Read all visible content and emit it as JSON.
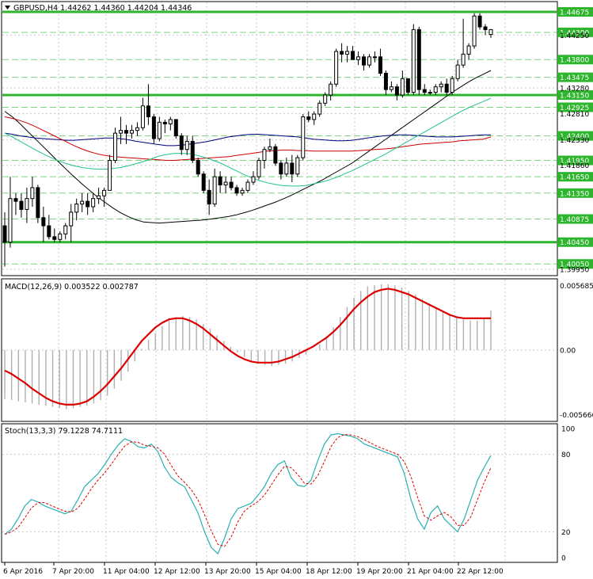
{
  "main_panel": {
    "header": "GBPUSD,H4  1.44262 1.44360 1.44204 1.44346",
    "level_labels": [
      "1.44675",
      "1.44300",
      "1.43800",
      "1.43475",
      "1.43150",
      "1.42925",
      "1.42400",
      "1.41950",
      "1.41650",
      "1.41350",
      "1.40875",
      "1.40450",
      "1.40050"
    ],
    "price_labels": [
      "1.44250",
      "1.43280",
      "1.42810",
      "1.42330",
      "1.41860",
      "1.39950"
    ]
  },
  "macd_panel": {
    "header": "MACD(12,26,9) 0.003522 0.002787",
    "axis_labels": [
      "0.005685",
      "0.00",
      "-0.005666"
    ]
  },
  "stoch_panel": {
    "header": "Stoch(13,3,3) 79.1228 74.7111",
    "axis_labels": [
      "100",
      "80",
      "20",
      "0"
    ]
  },
  "x_labels": [
    "6 Apr 2016",
    "7 Apr 20:00",
    "11 Apr 04:00",
    "12 Apr 12:00",
    "13 Apr 20:00",
    "15 Apr 04:00",
    "18 Apr 12:00",
    "19 Apr 20:00",
    "21 Apr 04:00",
    "22 Apr 12:00"
  ],
  "colors": {
    "level_thick": "#2db52d",
    "level_dashed": "#7ed37e",
    "candle": "#000000",
    "ma_black": "#000000",
    "ma_navy": "#000080",
    "ma_red": "#cc0000",
    "ma_green": "#22c28a",
    "macd_signal": "#dd0000",
    "macd_hist": "#b0b0b0",
    "stoch_main": "#2ab0b0",
    "stoch_signal": "#dd0000",
    "grid": "#c8c8c8"
  },
  "chart_data": [
    {
      "type": "candlestick",
      "symbol": "GBPUSD",
      "timeframe": "H4",
      "ohlc_last": {
        "open": 1.44262,
        "high": 1.4436,
        "low": 1.44204,
        "close": 1.44346
      },
      "ylim": [
        1.3985,
        1.4485
      ],
      "horizontal_levels": [
        {
          "value": 1.44675,
          "style": "thick"
        },
        {
          "value": 1.443,
          "style": "dashed"
        },
        {
          "value": 1.438,
          "style": "dashed"
        },
        {
          "value": 1.43475,
          "style": "dashed"
        },
        {
          "value": 1.4315,
          "style": "thick"
        },
        {
          "value": 1.42925,
          "style": "dashed"
        },
        {
          "value": 1.424,
          "style": "dashed"
        },
        {
          "value": 1.4195,
          "style": "dashed"
        },
        {
          "value": 1.4165,
          "style": "dashed"
        },
        {
          "value": 1.4135,
          "style": "dashed"
        },
        {
          "value": 1.40875,
          "style": "dashed"
        },
        {
          "value": 1.4045,
          "style": "thick"
        },
        {
          "value": 1.4005,
          "style": "dashed"
        }
      ],
      "candles": [
        [
          1.4075,
          1.41,
          1.4,
          1.4045
        ],
        [
          1.4045,
          1.4165,
          1.4035,
          1.4125
        ],
        [
          1.4125,
          1.4135,
          1.4095,
          1.412
        ],
        [
          1.412,
          1.4135,
          1.409,
          1.4105
        ],
        [
          1.4105,
          1.4145,
          1.408,
          1.4125
        ],
        [
          1.4125,
          1.4165,
          1.411,
          1.4145
        ],
        [
          1.4145,
          1.415,
          1.408,
          1.409
        ],
        [
          1.409,
          1.411,
          1.4045,
          1.4075
        ],
        [
          1.4075,
          1.4095,
          1.405,
          1.4055
        ],
        [
          1.4055,
          1.407,
          1.4045,
          1.405
        ],
        [
          1.405,
          1.4065,
          1.4045,
          1.406
        ],
        [
          1.406,
          1.408,
          1.405,
          1.4075
        ],
        [
          1.4075,
          1.4115,
          1.4045,
          1.41
        ],
        [
          1.41,
          1.4125,
          1.4085,
          1.4115
        ],
        [
          1.4115,
          1.4135,
          1.41,
          1.412
        ],
        [
          1.412,
          1.4135,
          1.4095,
          1.411
        ],
        [
          1.411,
          1.4135,
          1.41,
          1.4125
        ],
        [
          1.4125,
          1.4145,
          1.4115,
          1.413
        ],
        [
          1.413,
          1.4145,
          1.411,
          1.414
        ],
        [
          1.414,
          1.4205,
          1.414,
          1.4195
        ],
        [
          1.4195,
          1.4255,
          1.419,
          1.4245
        ],
        [
          1.4245,
          1.4275,
          1.4225,
          1.425
        ],
        [
          1.425,
          1.426,
          1.4225,
          1.4245
        ],
        [
          1.4245,
          1.426,
          1.4235,
          1.425
        ],
        [
          1.425,
          1.4265,
          1.424,
          1.4255
        ],
        [
          1.4255,
          1.431,
          1.425,
          1.4295
        ],
        [
          1.4295,
          1.4335,
          1.426,
          1.4275
        ],
        [
          1.4275,
          1.428,
          1.4225,
          1.4235
        ],
        [
          1.4235,
          1.4275,
          1.423,
          1.4265
        ],
        [
          1.4265,
          1.427,
          1.4245,
          1.4262
        ],
        [
          1.4262,
          1.4275,
          1.425,
          1.427
        ],
        [
          1.427,
          1.427,
          1.4235,
          1.424
        ],
        [
          1.424,
          1.4245,
          1.4205,
          1.4215
        ],
        [
          1.4215,
          1.424,
          1.4205,
          1.423
        ],
        [
          1.423,
          1.424,
          1.419,
          1.4195
        ],
        [
          1.4195,
          1.42,
          1.4165,
          1.417
        ],
        [
          1.417,
          1.4175,
          1.4135,
          1.414
        ],
        [
          1.414,
          1.416,
          1.4095,
          1.4115
        ],
        [
          1.4115,
          1.418,
          1.411,
          1.4165
        ],
        [
          1.4165,
          1.4175,
          1.4135,
          1.415
        ],
        [
          1.415,
          1.4165,
          1.4135,
          1.4155
        ],
        [
          1.4155,
          1.4165,
          1.414,
          1.4145
        ],
        [
          1.4145,
          1.415,
          1.413,
          1.4135
        ],
        [
          1.4135,
          1.4145,
          1.413,
          1.414
        ],
        [
          1.414,
          1.416,
          1.4135,
          1.4155
        ],
        [
          1.4155,
          1.4175,
          1.415,
          1.4165
        ],
        [
          1.4165,
          1.42,
          1.416,
          1.4195
        ],
        [
          1.4195,
          1.422,
          1.418,
          1.4215
        ],
        [
          1.4215,
          1.4235,
          1.421,
          1.422
        ],
        [
          1.422,
          1.4225,
          1.4185,
          1.419
        ],
        [
          1.419,
          1.4195,
          1.416,
          1.417
        ],
        [
          1.417,
          1.42,
          1.4165,
          1.419
        ],
        [
          1.419,
          1.4205,
          1.4155,
          1.417
        ],
        [
          1.417,
          1.4205,
          1.4165,
          1.42
        ],
        [
          1.42,
          1.428,
          1.4195,
          1.4275
        ],
        [
          1.4275,
          1.4285,
          1.4265,
          1.427
        ],
        [
          1.427,
          1.4285,
          1.426,
          1.428
        ],
        [
          1.428,
          1.4305,
          1.4275,
          1.43
        ],
        [
          1.43,
          1.432,
          1.4295,
          1.4315
        ],
        [
          1.4315,
          1.434,
          1.4305,
          1.4335
        ],
        [
          1.4335,
          1.44,
          1.433,
          1.4395
        ],
        [
          1.4395,
          1.441,
          1.4375,
          1.439
        ],
        [
          1.439,
          1.4405,
          1.4375,
          1.4395
        ],
        [
          1.4395,
          1.4405,
          1.438,
          1.438
        ],
        [
          1.438,
          1.4395,
          1.437,
          1.4385
        ],
        [
          1.4385,
          1.439,
          1.436,
          1.437
        ],
        [
          1.437,
          1.439,
          1.4365,
          1.4385
        ],
        [
          1.4385,
          1.4395,
          1.4375,
          1.4385
        ],
        [
          1.4385,
          1.44,
          1.435,
          1.4355
        ],
        [
          1.4355,
          1.436,
          1.4315,
          1.4325
        ],
        [
          1.4325,
          1.434,
          1.432,
          1.433
        ],
        [
          1.433,
          1.4335,
          1.4305,
          1.4315
        ],
        [
          1.4315,
          1.436,
          1.431,
          1.4345
        ],
        [
          1.4345,
          1.4345,
          1.4315,
          1.432
        ],
        [
          1.432,
          1.4445,
          1.4315,
          1.4435
        ],
        [
          1.4435,
          1.444,
          1.4315,
          1.4325
        ],
        [
          1.4325,
          1.4335,
          1.4315,
          1.432
        ],
        [
          1.432,
          1.4325,
          1.4315,
          1.432
        ],
        [
          1.432,
          1.4335,
          1.4315,
          1.433
        ],
        [
          1.433,
          1.434,
          1.432,
          1.4335
        ],
        [
          1.4335,
          1.4345,
          1.4315,
          1.432
        ],
        [
          1.432,
          1.435,
          1.4315,
          1.4345
        ],
        [
          1.4345,
          1.438,
          1.434,
          1.437
        ],
        [
          1.437,
          1.4455,
          1.4365,
          1.439
        ],
        [
          1.439,
          1.441,
          1.438,
          1.4405
        ],
        [
          1.4405,
          1.4465,
          1.44,
          1.446
        ],
        [
          1.446,
          1.4465,
          1.4435,
          1.444
        ],
        [
          1.444,
          1.4445,
          1.4425,
          1.4435
        ],
        [
          1.4426,
          1.4436,
          1.442,
          1.4435
        ]
      ],
      "moving_averages": [
        {
          "color": "black",
          "values": [
            1.4285,
            1.4275,
            1.4262,
            1.4248,
            1.4234,
            1.422,
            1.4206,
            1.4192,
            1.4178,
            1.4165,
            1.4152,
            1.414,
            1.4128,
            1.4118,
            1.4108,
            1.4099,
            1.4092,
            1.4086,
            1.4082,
            1.4081,
            1.408,
            1.4081,
            1.4082,
            1.4083,
            1.4084,
            1.4085,
            1.4086,
            1.4088,
            1.409,
            1.4092,
            1.4095,
            1.4099,
            1.4103,
            1.4108,
            1.4113,
            1.4118,
            1.4124,
            1.413,
            1.4137,
            1.4144,
            1.4151,
            1.4158,
            1.4166,
            1.4174,
            1.4182,
            1.419,
            1.42,
            1.421,
            1.422,
            1.423,
            1.424,
            1.425,
            1.426,
            1.427,
            1.428,
            1.429,
            1.43,
            1.431,
            1.432,
            1.4329,
            1.4338,
            1.4346,
            1.4353,
            1.436
          ]
        },
        {
          "color": "navy",
          "values": [
            1.4245,
            1.4243,
            1.424,
            1.4238,
            1.4236,
            1.4235,
            1.4234,
            1.4233,
            1.4232,
            1.4232,
            1.4233,
            1.4234,
            1.4235,
            1.4236,
            1.4236,
            1.4235,
            1.4233,
            1.423,
            1.4228,
            1.4226,
            1.4224,
            1.4222,
            1.4222,
            1.4223,
            1.4225,
            1.4227,
            1.4229,
            1.4232,
            1.4235,
            1.4238,
            1.424,
            1.4242,
            1.4243,
            1.4243,
            1.4242,
            1.4241,
            1.424,
            1.4239,
            1.4238,
            1.4236,
            1.4234,
            1.4233,
            1.4232,
            1.4231,
            1.4231,
            1.4232,
            1.4234,
            1.4236,
            1.4238,
            1.424,
            1.4241,
            1.4242,
            1.4242,
            1.4241,
            1.424,
            1.4239,
            1.4238,
            1.4238,
            1.4238,
            1.4239,
            1.424,
            1.4241,
            1.4242,
            1.4242
          ]
        },
        {
          "color": "red",
          "values": [
            1.4275,
            1.4272,
            1.4268,
            1.4263,
            1.4257,
            1.425,
            1.4243,
            1.4236,
            1.4229,
            1.4222,
            1.4216,
            1.4211,
            1.4207,
            1.4204,
            1.4202,
            1.4201,
            1.42,
            1.4199,
            1.4198,
            1.4197,
            1.4196,
            1.4195,
            1.4195,
            1.4196,
            1.4197,
            1.4198,
            1.4199,
            1.42,
            1.4201,
            1.4202,
            1.4204,
            1.4206,
            1.4208,
            1.421,
            1.4212,
            1.4213,
            1.4214,
            1.4214,
            1.4213,
            1.4213,
            1.4212,
            1.4212,
            1.4212,
            1.4212,
            1.4212,
            1.4212,
            1.4213,
            1.4214,
            1.4215,
            1.4216,
            1.4217,
            1.4219,
            1.4221,
            1.4223,
            1.4225,
            1.4226,
            1.4227,
            1.4228,
            1.4229,
            1.4231,
            1.4232,
            1.4233,
            1.4234,
            1.4238
          ]
        },
        {
          "color": "green",
          "values": [
            1.4245,
            1.4238,
            1.423,
            1.4222,
            1.4214,
            1.4207,
            1.42,
            1.4194,
            1.4189,
            1.4185,
            1.4182,
            1.418,
            1.4179,
            1.4179,
            1.418,
            1.4182,
            1.4185,
            1.4189,
            1.4193,
            1.4198,
            1.4203,
            1.4206,
            1.4208,
            1.4208,
            1.4207,
            1.4204,
            1.42,
            1.4195,
            1.419,
            1.4183,
            1.4176,
            1.4169,
            1.4163,
            1.4158,
            1.4154,
            1.4151,
            1.4149,
            1.4148,
            1.4148,
            1.4149,
            1.4152,
            1.4155,
            1.4159,
            1.4164,
            1.417,
            1.4176,
            1.4183,
            1.419,
            1.4197,
            1.4204,
            1.4212,
            1.422,
            1.4228,
            1.4236,
            1.4244,
            1.4252,
            1.426,
            1.4268,
            1.4276,
            1.4284,
            1.4291,
            1.4297,
            1.4303,
            1.4309
          ]
        }
      ]
    },
    {
      "type": "macd",
      "params": [
        12,
        26,
        9
      ],
      "main": 0.003522,
      "signal": 0.002787,
      "ylim": [
        -0.0062,
        0.0062
      ],
      "histogram": [
        -0.0043,
        -0.0044,
        -0.0045,
        -0.0046,
        -0.0047,
        -0.0048,
        -0.0049,
        -0.005,
        -0.0051,
        -0.0052,
        -0.0051,
        -0.005,
        -0.0049,
        -0.0047,
        -0.0044,
        -0.004,
        -0.0034,
        -0.0027,
        -0.0019,
        -0.001,
        0.0001,
        0.0009,
        0.0015,
        0.0021,
        0.0026,
        0.0029,
        0.003,
        0.0029,
        0.0027,
        0.0023,
        0.0019,
        0.0013,
        0.0008,
        0.0003,
        -0.0002,
        -0.0006,
        -0.0009,
        -0.0012,
        -0.0013,
        -0.0014,
        -0.0013,
        -0.0012,
        -0.001,
        -0.0007,
        -0.0004,
        0.0,
        0.0005,
        0.0012,
        0.002,
        0.0029,
        0.0038,
        0.0046,
        0.0052,
        0.0056,
        0.0057,
        0.0058,
        0.0058,
        0.0057,
        0.0055,
        0.0052,
        0.0049,
        0.0045,
        0.0041,
        0.0037,
        0.0034,
        0.0031,
        0.0028,
        0.0027,
        0.0026,
        0.0026,
        0.0028,
        0.0035
      ],
      "signal_line": [
        -0.0018,
        -0.0021,
        -0.0025,
        -0.0029,
        -0.0034,
        -0.0038,
        -0.0042,
        -0.0045,
        -0.0047,
        -0.0048,
        -0.0048,
        -0.0047,
        -0.0045,
        -0.0041,
        -0.0036,
        -0.003,
        -0.0023,
        -0.0016,
        -0.0008,
        0.0,
        0.0008,
        0.0014,
        0.002,
        0.0024,
        0.0027,
        0.0028,
        0.0028,
        0.0026,
        0.0023,
        0.0019,
        0.0014,
        0.0009,
        0.0004,
        -0.0001,
        -0.0005,
        -0.0008,
        -0.001,
        -0.0011,
        -0.0011,
        -0.0011,
        -0.001,
        -0.0008,
        -0.0006,
        -0.0003,
        0.0,
        0.0003,
        0.0007,
        0.0011,
        0.0016,
        0.0022,
        0.0029,
        0.0036,
        0.0042,
        0.0047,
        0.0051,
        0.0053,
        0.0054,
        0.0053,
        0.0051,
        0.0049,
        0.0046,
        0.0043,
        0.004,
        0.0037,
        0.0034,
        0.0031,
        0.0029,
        0.0028,
        0.0028,
        0.0028,
        0.0028,
        0.0028
      ]
    },
    {
      "type": "stochastic",
      "params": [
        13,
        3,
        3
      ],
      "main": 79.1228,
      "signal": 74.7111,
      "ylim": [
        0,
        100
      ],
      "levels": [
        80,
        20
      ],
      "main_line": [
        18,
        22,
        30,
        40,
        45,
        43,
        40,
        38,
        36,
        34,
        36,
        45,
        55,
        60,
        65,
        72,
        80,
        87,
        92,
        90,
        86,
        85,
        88,
        82,
        70,
        62,
        58,
        55,
        45,
        35,
        20,
        8,
        3,
        15,
        30,
        38,
        40,
        42,
        48,
        55,
        65,
        72,
        75,
        62,
        56,
        55,
        60,
        75,
        88,
        95,
        96,
        95,
        94,
        92,
        88,
        86,
        84,
        82,
        80,
        78,
        65,
        45,
        30,
        22,
        35,
        40,
        30,
        25,
        20,
        30,
        45,
        60,
        70,
        79
      ]
    }
  ]
}
